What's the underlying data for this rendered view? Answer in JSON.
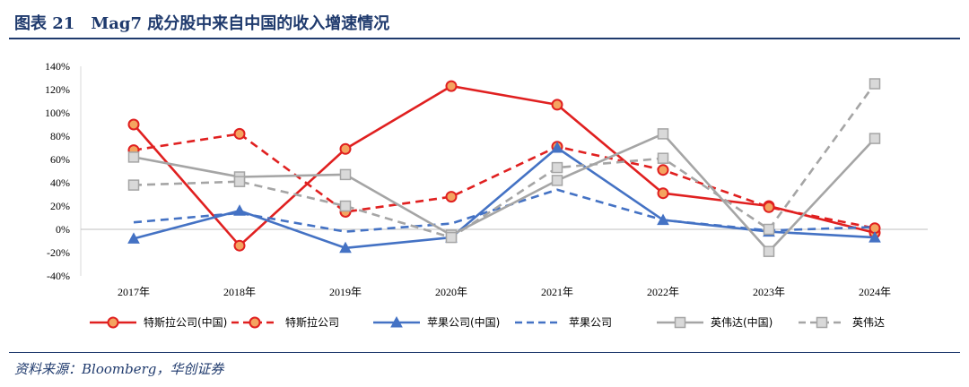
{
  "header": {
    "title": "图表 21　Mag7 成分股中来自中国的收入增速情况"
  },
  "footer": {
    "source": "资料来源：Bloomberg，华创证券"
  },
  "chart_data": {
    "type": "line",
    "title": "",
    "xlabel": "",
    "ylabel": "",
    "categories": [
      "2017年",
      "2018年",
      "2019年",
      "2020年",
      "2021年",
      "2022年",
      "2023年",
      "2024年"
    ],
    "ylim": [
      -40,
      140
    ],
    "yticks": [
      -40,
      -20,
      0,
      20,
      40,
      60,
      80,
      100,
      120,
      140
    ],
    "y_tick_labels": [
      "-40%",
      "-20%",
      "0%",
      "20%",
      "40%",
      "60%",
      "80%",
      "100%",
      "120%",
      "140%"
    ],
    "legend_position": "bottom",
    "series": [
      {
        "name": "特斯拉公司(中国)",
        "values": [
          90,
          -14,
          69,
          123,
          107,
          31,
          20,
          -3
        ],
        "color": "#e02020",
        "dash": false,
        "marker": "circle"
      },
      {
        "name": "特斯拉公司",
        "values": [
          68,
          82,
          15,
          28,
          71,
          51,
          19,
          1
        ],
        "color": "#e02020",
        "dash": true,
        "marker": "circle"
      },
      {
        "name": "苹果公司(中国)",
        "values": [
          -8,
          16,
          -16,
          -7,
          70,
          8,
          -2,
          -7
        ],
        "color": "#4472c4",
        "dash": false,
        "marker": "triangle"
      },
      {
        "name": "苹果公司",
        "values": [
          6,
          14,
          -2,
          5,
          34,
          8,
          -1,
          2
        ],
        "color": "#4472c4",
        "dash": true,
        "marker": "none"
      },
      {
        "name": "英伟达(中国)",
        "values": [
          62,
          45,
          47,
          -5,
          42,
          82,
          -19,
          78
        ],
        "color": "#a5a5a5",
        "dash": false,
        "marker": "square"
      },
      {
        "name": "英伟达",
        "values": [
          38,
          41,
          20,
          -7,
          53,
          61,
          0,
          125
        ],
        "color": "#a5a5a5",
        "dash": true,
        "marker": "square"
      }
    ]
  }
}
